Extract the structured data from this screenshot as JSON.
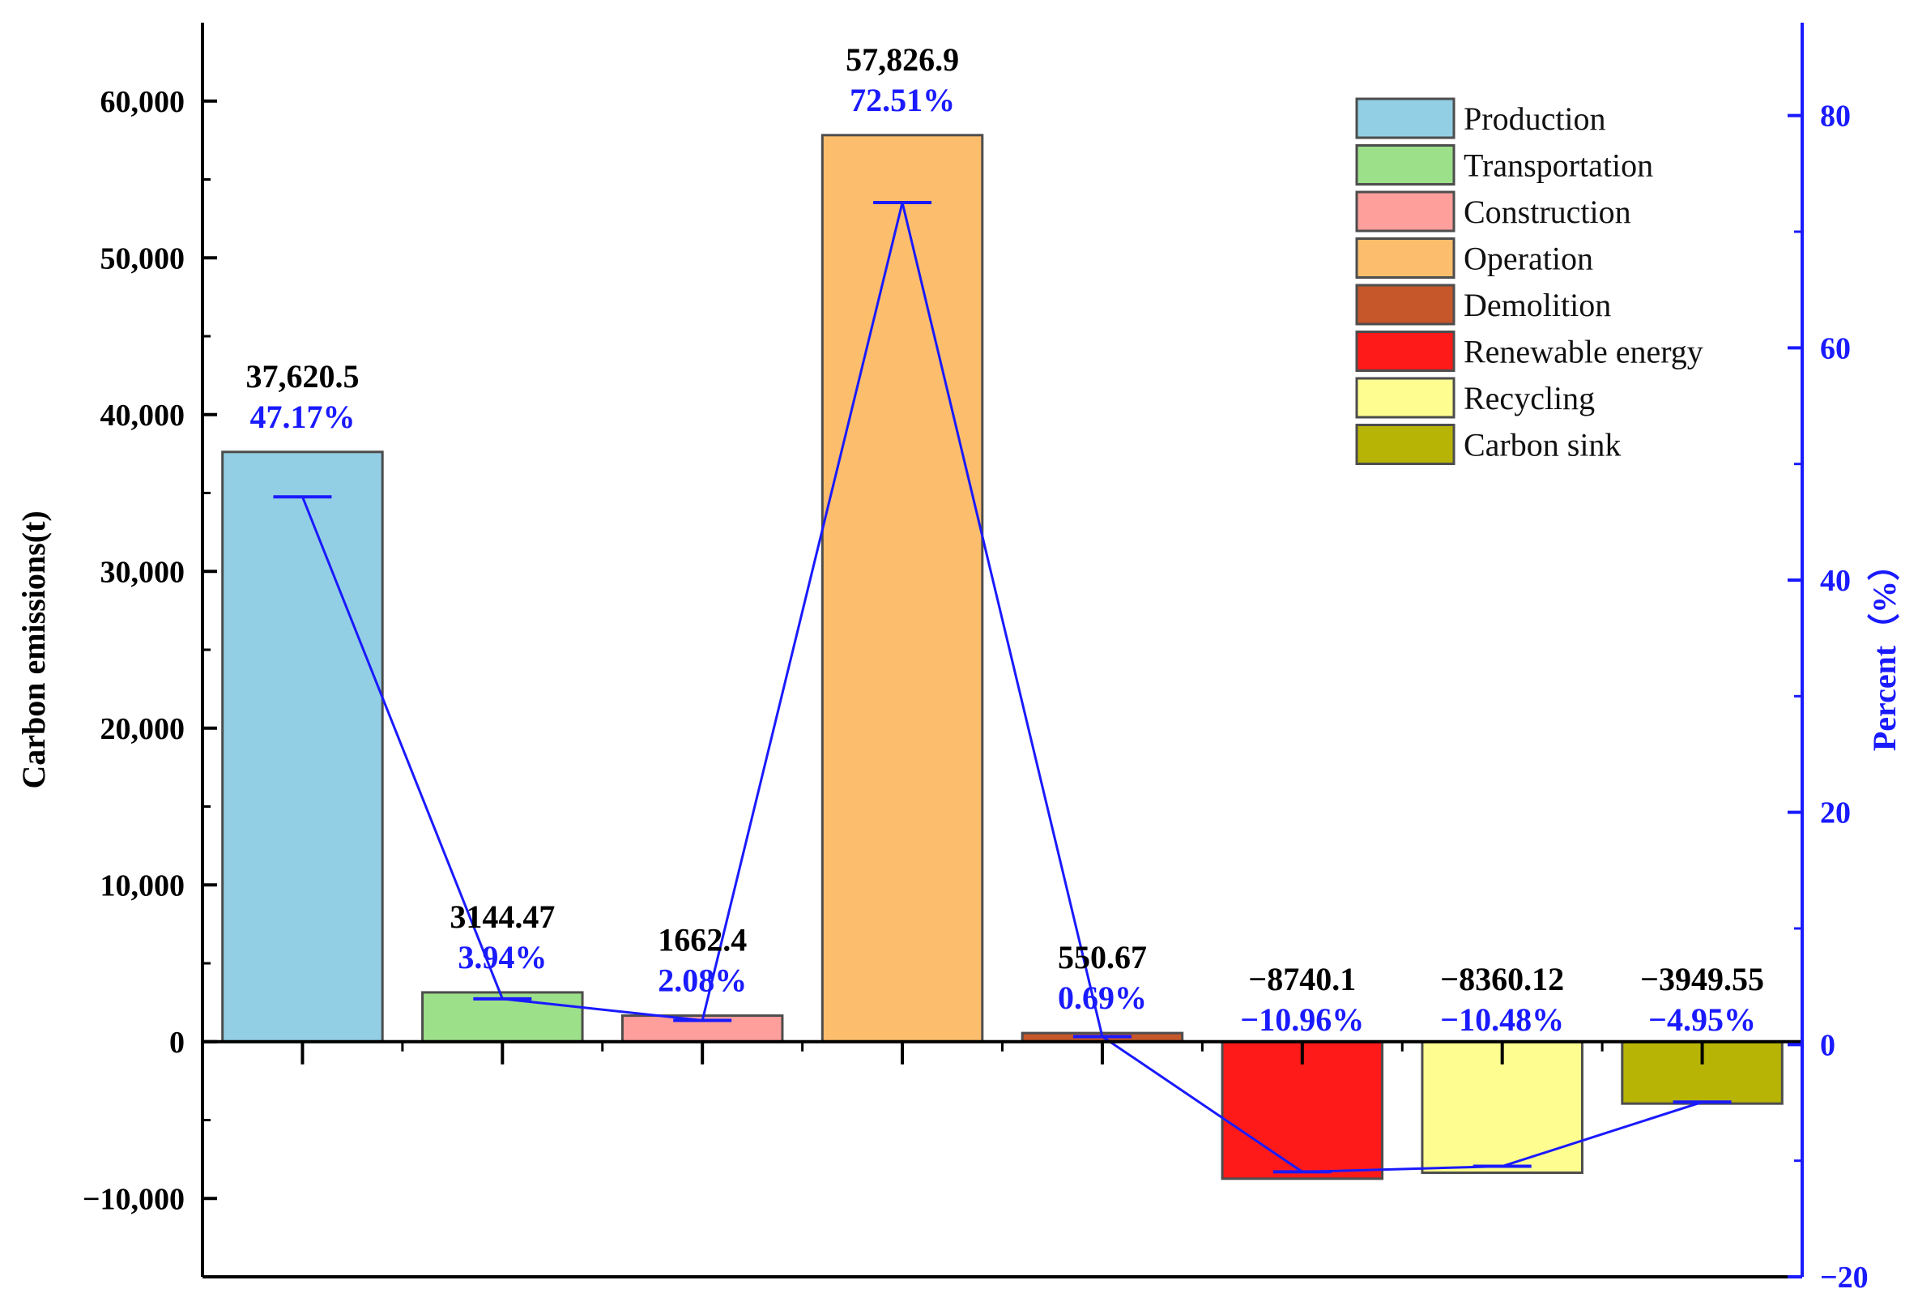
{
  "chart_data": {
    "type": "bar",
    "categories": [
      "Production",
      "Transportation",
      "Construction",
      "Operation",
      "Demolition",
      "Renewable energy",
      "Recycling",
      "Carbon sink"
    ],
    "values": [
      37620.5,
      3144.47,
      1662.4,
      57826.9,
      550.67,
      -8740.1,
      -8360.12,
      -3949.55
    ],
    "value_labels": [
      "37,620.5",
      "3144.47",
      "1662.4",
      "57,826.9",
      "550.67",
      "−8740.1",
      "−8360.12",
      "−3949.55"
    ],
    "percent_values": [
      47.17,
      3.94,
      2.08,
      72.51,
      0.69,
      -10.96,
      -10.48,
      -4.95
    ],
    "percent_labels": [
      "47.17%",
      "3.94%",
      "2.08%",
      "72.51%",
      "0.69%",
      "−10.96%",
      "−10.48%",
      "−4.95%"
    ],
    "colors": [
      "#93cfe4",
      "#9de08a",
      "#ff9f9c",
      "#fcbe6c",
      "#c5572a",
      "#ff1a1a",
      "#fefd90",
      "#b7b406"
    ],
    "ylabel": "Carbon emissions(t)",
    "y2label": "Percent（%）",
    "ylim": [
      -15000,
      65000
    ],
    "y2lim": [
      -20,
      88
    ],
    "yticks": [
      -10000,
      0,
      10000,
      20000,
      30000,
      40000,
      50000,
      60000
    ],
    "ytick_labels": [
      "−10,000",
      "0",
      "10,000",
      "20,000",
      "30,000",
      "40,000",
      "50,000",
      "60,000"
    ],
    "y2ticks": [
      -20,
      0,
      20,
      40,
      60,
      80
    ],
    "y2tick_labels": [
      "−20",
      "0",
      "20",
      "40",
      "60",
      "80"
    ],
    "line_color": "#1a1aff",
    "legend_position": "top-right",
    "grid": false
  }
}
